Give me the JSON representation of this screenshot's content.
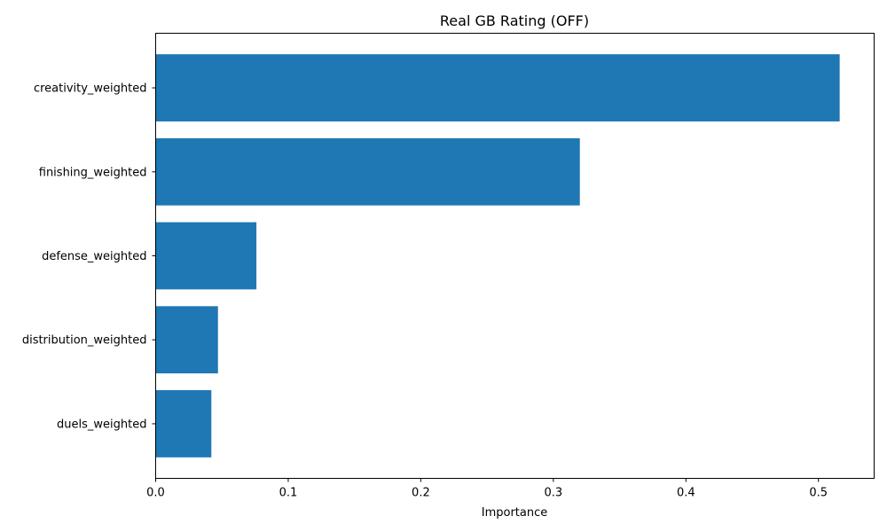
{
  "chart_data": {
    "type": "bar",
    "orientation": "horizontal",
    "title": "Real GB Rating (OFF)",
    "xlabel": "Importance",
    "ylabel": "",
    "categories": [
      "creativity_weighted",
      "finishing_weighted",
      "defense_weighted",
      "distribution_weighted",
      "duels_weighted"
    ],
    "values": [
      0.516,
      0.32,
      0.076,
      0.047,
      0.042
    ],
    "xlim": [
      0,
      0.542
    ],
    "xticks": [
      0.0,
      0.1,
      0.2,
      0.3,
      0.4,
      0.5
    ],
    "xtick_labels": [
      "0.0",
      "0.1",
      "0.2",
      "0.3",
      "0.4",
      "0.5"
    ],
    "bar_color": "#1f77b4",
    "grid": false,
    "legend": "none"
  }
}
